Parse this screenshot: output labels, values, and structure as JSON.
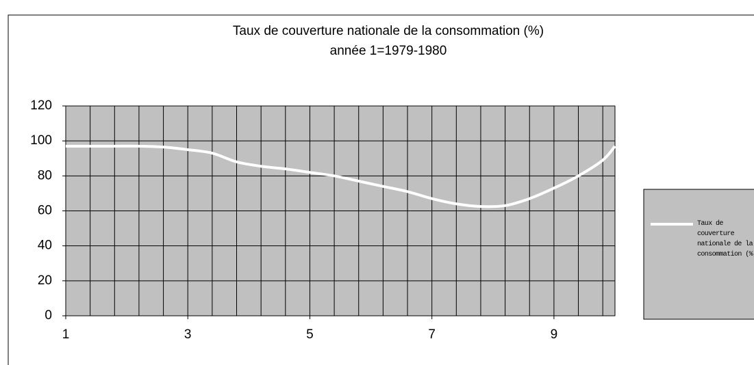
{
  "chart_data": {
    "type": "line",
    "title": "Taux de couverture nationale de la consommation (%)",
    "subtitle": "année 1=1979-1980",
    "x": [
      1,
      1.4,
      1.8,
      2.2,
      2.6,
      3,
      3.4,
      3.8,
      4.2,
      4.6,
      5,
      5.4,
      5.8,
      6.2,
      6.6,
      7,
      7.4,
      7.8,
      8.2,
      8.6,
      9,
      9.4,
      9.8,
      10
    ],
    "series": [
      {
        "name": "Taux de couverture nationale de la consommation (%)",
        "color": "#ffffff",
        "values": [
          97,
          97,
          97,
          97,
          96.5,
          95,
          93,
          88,
          85.5,
          84,
          82,
          80,
          77,
          74,
          71,
          67,
          64,
          62.5,
          63,
          67,
          73,
          80,
          89,
          97
        ]
      }
    ],
    "xlim": [
      1,
      10
    ],
    "xticks": [
      1,
      3,
      5,
      7,
      9
    ],
    "ylim": [
      0,
      120
    ],
    "yticks": [
      0,
      20,
      40,
      60,
      80,
      100,
      120
    ],
    "grid": true,
    "legend": "right"
  }
}
